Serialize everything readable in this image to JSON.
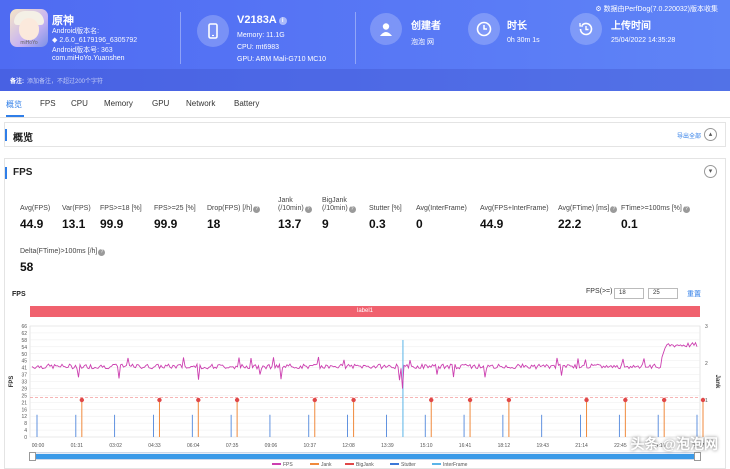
{
  "header": {
    "app": {
      "icon_text": "miHoYo",
      "name": "原神",
      "lines": [
        "Android版本名:",
        "2.6.0_6179196_6305792",
        "Android版本号: 363"
      ],
      "package": "com.miHoYo.Yuanshen"
    },
    "device": {
      "name": "V2183A",
      "memory": "Memory: 11.1G",
      "cpu": "CPU: mt6983",
      "gpu": "GPU: ARM Mali-G710 MC10"
    },
    "creator": {
      "label": "创建者",
      "value": "泡泡 网"
    },
    "duration": {
      "label": "时长",
      "value": "0h 30m 1s"
    },
    "upload": {
      "label": "上传时间",
      "value": "25/04/2022 14:35:28"
    },
    "version_note": "数据由PerfDog(7.0.220032)版本收集"
  },
  "note": {
    "label": "备注:",
    "placeholder": "添加备注，不超过200个字符"
  },
  "tabs": [
    "概览",
    "FPS",
    "CPU",
    "Memory",
    "GPU",
    "Network",
    "Battery"
  ],
  "overview": {
    "title": "概览",
    "export": "导出全部"
  },
  "fps_section": {
    "title": "FPS",
    "toggle": "▾",
    "stats": [
      {
        "k1": "Avg(FPS)",
        "k2": "",
        "q": false,
        "v": "44.9"
      },
      {
        "k1": "Var(FPS)",
        "k2": "",
        "q": false,
        "v": "13.1"
      },
      {
        "k1": "FPS>=18 [%]",
        "k2": "",
        "q": false,
        "v": "99.9"
      },
      {
        "k1": "FPS>=25 [%]",
        "k2": "",
        "q": false,
        "v": "99.9"
      },
      {
        "k1": "Drop(FPS) [/h]",
        "k2": "",
        "q": true,
        "v": "18"
      },
      {
        "k1": "Jank",
        "k2": "(/10min)",
        "q": true,
        "v": "13.7"
      },
      {
        "k1": "BigJank",
        "k2": "(/10min)",
        "q": true,
        "v": "9"
      },
      {
        "k1": "Stutter [%]",
        "k2": "",
        "q": false,
        "v": "0.3"
      },
      {
        "k1": "Avg(InterFrame)",
        "k2": "",
        "q": false,
        "v": "0"
      },
      {
        "k1": "Avg(FPS+InterFrame)",
        "k2": "",
        "q": false,
        "v": "44.9"
      },
      {
        "k1": "Avg(FTime) [ms]",
        "k2": "",
        "q": true,
        "v": "22.2"
      },
      {
        "k1": "FTime>=100ms [%]",
        "k2": "",
        "q": true,
        "v": "0.1"
      },
      {
        "k1": "Delta(FTime)>100ms [/h]",
        "k2": "",
        "q": true,
        "v": "58"
      }
    ],
    "chart_label": "FPS",
    "fps_threshold_label": "FPS(>=)",
    "fps_threshold_1": "18",
    "fps_threshold_2": "25",
    "reset": "重置",
    "label_bar": "label1"
  },
  "chart_data": {
    "type": "line",
    "ylabel": "FPS",
    "y2label": "Jank",
    "ylim": [
      0,
      70
    ],
    "y_ticks": [
      "0",
      "4",
      "8",
      "12",
      "16",
      "21",
      "25",
      "29",
      "33",
      "37",
      "41",
      "45",
      "50",
      "54",
      "58",
      "62",
      "66"
    ],
    "y2lim": [
      0,
      3
    ],
    "y2_ticks": [
      "1",
      "2",
      "3"
    ],
    "x_ticks": [
      "00:00",
      "01:31",
      "03:02",
      "04:33",
      "06:04",
      "07:35",
      "09:06",
      "10:37",
      "12:08",
      "13:39",
      "15:10",
      "16:41",
      "18:12",
      "19:43",
      "21:14",
      "22:45",
      "24:16",
      "25:47"
    ],
    "series": [
      {
        "name": "FPS",
        "color": "#cc3fb0",
        "baseline": 44.5,
        "end_value": 58
      },
      {
        "name": "Jank",
        "color": "#f08a3c",
        "values_at_ticks": [
          0,
          1,
          0,
          1,
          1,
          1,
          0,
          1,
          1,
          0,
          1,
          1,
          1,
          0,
          1,
          1,
          1,
          1
        ]
      },
      {
        "name": "BigJank",
        "color": "#e04848"
      },
      {
        "name": "Stutter",
        "color": "#3b78d8"
      },
      {
        "name": "InterFrame",
        "color": "#5ab4e8"
      }
    ]
  },
  "watermark": "头条 @泡泡网"
}
